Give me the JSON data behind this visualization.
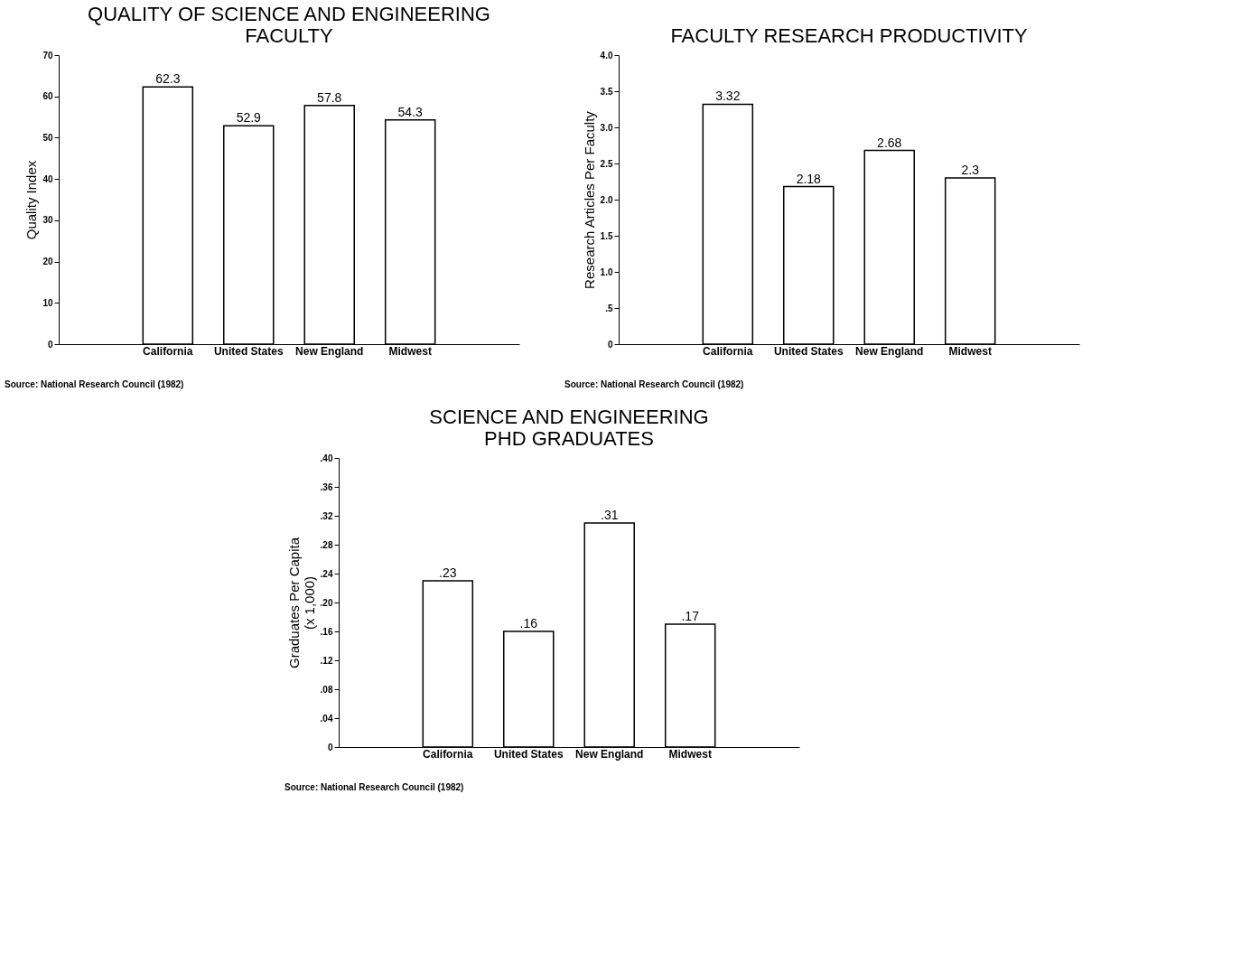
{
  "chart_data": [
    {
      "type": "bar",
      "title": "QUALITY OF SCIENCE AND ENGINEERING\nFACULTY",
      "ylabel": "Quality Index",
      "categories": [
        "California",
        "United States",
        "New England",
        "Midwest"
      ],
      "values": [
        62.3,
        52.9,
        57.8,
        54.3
      ],
      "color": "#ffffff",
      "data_labels": true,
      "ylim": [
        0,
        70
      ],
      "yticks": [
        0,
        10,
        20,
        30,
        40,
        50,
        60,
        70
      ],
      "grid": false,
      "annotations": [
        "Source: National Research Council (1982)"
      ]
    },
    {
      "type": "bar",
      "title": "FACULTY RESEARCH PRODUCTIVITY",
      "ylabel": "Research Articles Per Faculty",
      "categories": [
        "California",
        "United States",
        "New England",
        "Midwest"
      ],
      "values": [
        3.32,
        2.18,
        2.68,
        2.3
      ],
      "color": "#ffffff",
      "data_labels": true,
      "ylim": [
        0,
        4
      ],
      "yticks": [
        0,
        {
          "value": 0.5,
          "label": ".5"
        },
        {
          "value": 1,
          "label": "1.0"
        },
        1.5,
        {
          "value": 2,
          "label": "2.0"
        },
        2.5,
        {
          "value": 3,
          "label": "3.0"
        },
        3.5,
        {
          "value": 4,
          "label": "4.0"
        }
      ],
      "grid": false,
      "annotations": [
        "Source: National Research Council (1982)"
      ]
    },
    {
      "type": "bar",
      "title": "SCIENCE AND ENGINEERING\nPHD GRADUATES",
      "ylabel": "Graduates Per Capita\n(x 1,000)",
      "categories": [
        "California",
        "United States",
        "New England",
        "Midwest"
      ],
      "values": [
        0.23,
        0.16,
        0.31,
        0.17
      ],
      "value_labels": [
        ".23",
        ".16",
        ".31",
        ".17"
      ],
      "color": "#ffffff",
      "ylim": [
        0,
        0.4
      ],
      "yticks": [
        0,
        {
          "value": 0.04,
          "label": ".04"
        },
        {
          "value": 0.08,
          "label": ".08"
        },
        {
          "value": 0.12,
          "label": ".12"
        },
        {
          "value": 0.16,
          "label": ".16"
        },
        {
          "value": 0.2,
          "label": ".20"
        },
        {
          "value": 0.24,
          "label": ".24"
        },
        {
          "value": 0.28,
          "label": ".28"
        },
        {
          "value": 0.32,
          "label": ".32"
        },
        {
          "value": 0.36,
          "label": ".36"
        },
        {
          "value": 0.4,
          "label": ".40"
        }
      ],
      "grid": false,
      "annotations": [
        "Source: National Research Council (1982)"
      ]
    }
  ]
}
